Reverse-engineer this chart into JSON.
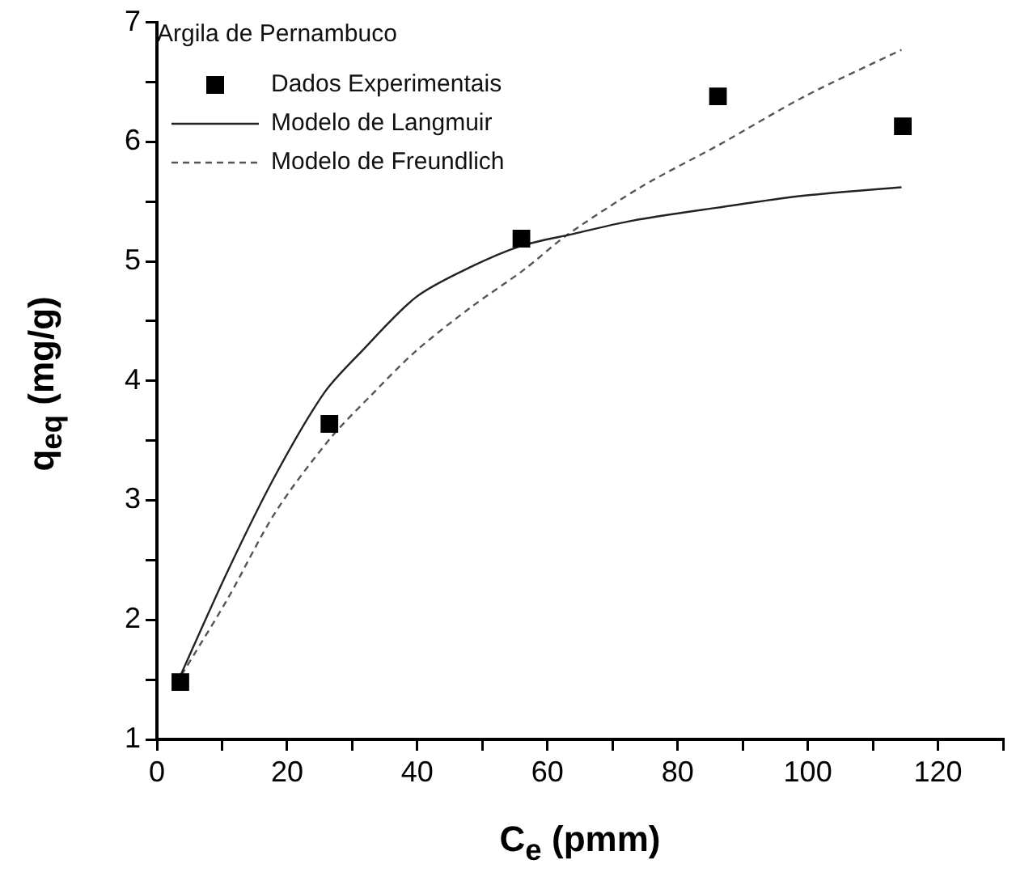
{
  "chart_data": {
    "type": "scatter",
    "legend_title": "Argila de Pernambuco",
    "xlabel": "C$_{e}$ (pmm)",
    "ylabel": "q$_{eq}$ (mg/g)",
    "xlim": [
      0,
      130
    ],
    "xticks": [
      0,
      {
        "value": 10,
        "label": null
      },
      20,
      {
        "value": 30,
        "label": null
      },
      40,
      {
        "value": 50,
        "label": null
      },
      60,
      {
        "value": 70,
        "label": null
      },
      80,
      {
        "value": 90,
        "label": null
      },
      100,
      {
        "value": 110,
        "label": null
      },
      120,
      {
        "value": 130,
        "label": null
      }
    ],
    "ylim": [
      1,
      7
    ],
    "yticks": [
      1,
      {
        "value": 1.5,
        "label": null
      },
      2,
      {
        "value": 2.5,
        "label": null
      },
      3,
      {
        "value": 3.5,
        "label": null
      },
      4,
      {
        "value": 4.5,
        "label": null
      },
      5,
      {
        "value": 5.5,
        "label": null
      },
      6,
      {
        "value": 6.5,
        "label": null
      },
      7
    ],
    "grid": false,
    "legend": "top left",
    "series": [
      {
        "name": "Dados Experimentais",
        "type": "scatter",
        "marker": "square",
        "color": "#000000",
        "x": [
          3.6,
          26.5,
          56,
          86.2,
          114.6
        ],
        "values": [
          1.48,
          3.64,
          5.19,
          6.38,
          6.13
        ]
      },
      {
        "name": "Modelo de Langmuir",
        "type": "line",
        "marker": "none",
        "line_style": "solid",
        "color": "#222222",
        "x": [
          3.5,
          10.8,
          18.2,
          25.7,
          31.5,
          39.8,
          48.1,
          56,
          64,
          73,
          86.2,
          99.5,
          114.4
        ],
        "values": [
          1.52,
          2.4,
          3.21,
          3.9,
          4.25,
          4.7,
          4.95,
          5.13,
          5.23,
          5.34,
          5.45,
          5.55,
          5.62
        ]
      },
      {
        "name": "Modelo de Freundlich",
        "type": "line",
        "marker": "none",
        "line_style": "dashed",
        "color": "#555555",
        "x": [
          3.8,
          10.8,
          18.2,
          26.5,
          33.1,
          39.8,
          48.1,
          56.4,
          63,
          74.6,
          86.2,
          99.5,
          114.4
        ],
        "values": [
          1.54,
          2.17,
          2.9,
          3.51,
          3.89,
          4.25,
          4.61,
          4.93,
          5.22,
          5.63,
          5.97,
          6.38,
          6.77
        ]
      }
    ]
  }
}
